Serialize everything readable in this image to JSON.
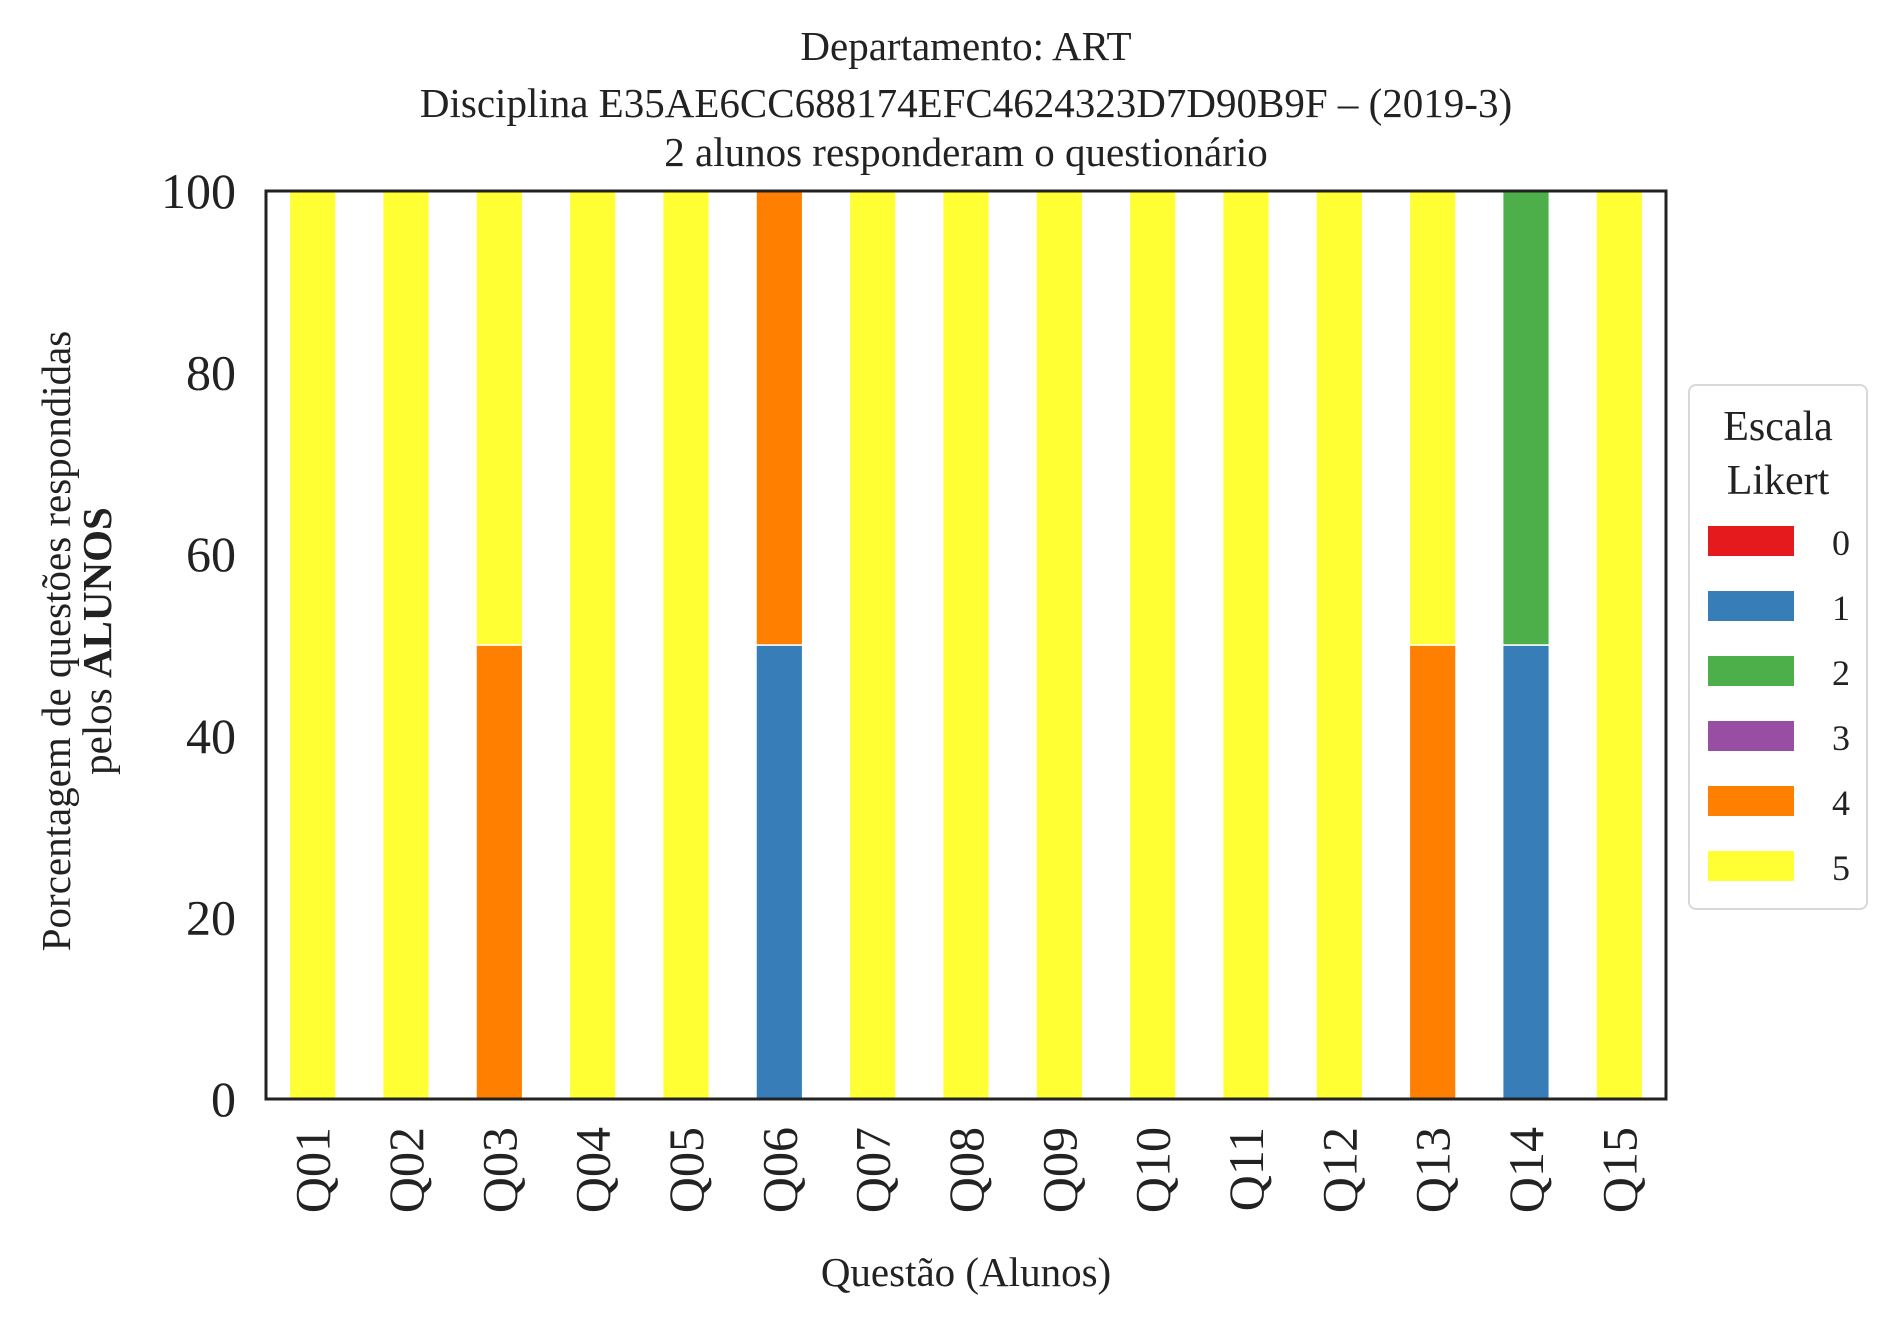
{
  "chart_data": {
    "type": "bar",
    "stacked": true,
    "title_lines": [
      "Departamento: ART",
      "Disciplina E35AE6CC688174EFC4624323D7D90B9F – (2019-3)",
      "2 alunos responderam o questionário"
    ],
    "xlabel": "Questão (Alunos)",
    "ylabel_lines": [
      "Porcentagem de questões respondidas",
      "pelos",
      "ALUNOS"
    ],
    "ylim": [
      0,
      100
    ],
    "yticks": [
      "0",
      "20",
      "40",
      "60",
      "80",
      "100"
    ],
    "categories": [
      "Q01",
      "Q02",
      "Q03",
      "Q04",
      "Q05",
      "Q06",
      "Q07",
      "Q08",
      "Q09",
      "Q10",
      "Q11",
      "Q12",
      "Q13",
      "Q14",
      "Q15"
    ],
    "legend": {
      "title": "Escala\nLikert",
      "placement": "center-right outside"
    },
    "series": [
      {
        "name": "0",
        "color": "#e41a1c",
        "values": [
          0,
          0,
          0,
          0,
          0,
          0,
          0,
          0,
          0,
          0,
          0,
          0,
          0,
          0,
          0
        ]
      },
      {
        "name": "1",
        "color": "#377eb8",
        "values": [
          0,
          0,
          0,
          0,
          0,
          50,
          0,
          0,
          0,
          0,
          0,
          0,
          0,
          50,
          0
        ]
      },
      {
        "name": "2",
        "color": "#4daf4a",
        "values": [
          0,
          0,
          0,
          0,
          0,
          0,
          0,
          0,
          0,
          0,
          0,
          0,
          0,
          50,
          0
        ]
      },
      {
        "name": "3",
        "color": "#984ea3",
        "values": [
          0,
          0,
          0,
          0,
          0,
          0,
          0,
          0,
          0,
          0,
          0,
          0,
          0,
          0,
          0
        ]
      },
      {
        "name": "4",
        "color": "#ff7f00",
        "values": [
          0,
          0,
          50,
          0,
          0,
          50,
          0,
          0,
          0,
          0,
          0,
          0,
          50,
          0,
          0
        ]
      },
      {
        "name": "5",
        "color": "#ffff33",
        "values": [
          100,
          100,
          50,
          100,
          100,
          0,
          100,
          100,
          100,
          100,
          100,
          100,
          50,
          0,
          100
        ]
      }
    ],
    "grid": false
  }
}
